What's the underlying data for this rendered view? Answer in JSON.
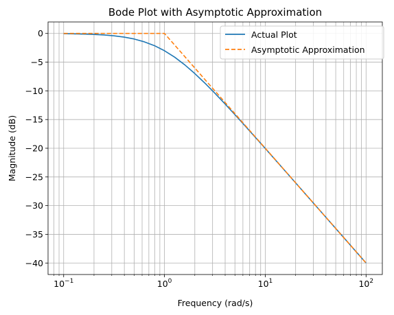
{
  "chart_data": {
    "type": "line",
    "title": "Bode Plot with Asymptotic Approximation",
    "xlabel": "Frequency (rad/s)",
    "ylabel": "Magnitude (dB)",
    "xscale": "log",
    "xlim": [
      0.07,
      145
    ],
    "ylim": [
      -42,
      2
    ],
    "x_ticks": [
      {
        "value": 0.1,
        "base": "10",
        "exp": "−1"
      },
      {
        "value": 1,
        "base": "10",
        "exp": "0"
      },
      {
        "value": 10,
        "base": "10",
        "exp": "1"
      },
      {
        "value": 100,
        "base": "10",
        "exp": "2"
      }
    ],
    "y_ticks": [
      {
        "value": 0,
        "label": "0"
      },
      {
        "value": -5,
        "label": "−5"
      },
      {
        "value": -10,
        "label": "−10"
      },
      {
        "value": -15,
        "label": "−15"
      },
      {
        "value": -20,
        "label": "−20"
      },
      {
        "value": -25,
        "label": "−25"
      },
      {
        "value": -30,
        "label": "−30"
      },
      {
        "value": -35,
        "label": "−35"
      },
      {
        "value": -40,
        "label": "−40"
      }
    ],
    "grid": true,
    "grid_minor_x": true,
    "legend_position": "top-right",
    "series": [
      {
        "name": "Actual Plot",
        "color": "#1f77b4",
        "style": "solid",
        "x": [
          0.1,
          0.126,
          0.158,
          0.2,
          0.251,
          0.316,
          0.398,
          0.501,
          0.631,
          0.794,
          1.0,
          1.259,
          1.585,
          1.995,
          2.512,
          3.162,
          3.981,
          5.012,
          6.31,
          7.943,
          10.0,
          12.59,
          15.85,
          19.95,
          25.12,
          31.62,
          39.81,
          50.12,
          63.1,
          79.43,
          100.0
        ],
        "y": [
          -0.04,
          -0.07,
          -0.11,
          -0.17,
          -0.26,
          -0.41,
          -0.64,
          -0.97,
          -1.46,
          -2.12,
          -3.01,
          -4.12,
          -5.45,
          -6.97,
          -8.64,
          -10.41,
          -12.27,
          -14.17,
          -16.11,
          -18.07,
          -20.04,
          -22.03,
          -24.02,
          -26.01,
          -28.01,
          -30.0,
          -32.0,
          -34.0,
          -36.0,
          -38.0,
          -40.0
        ]
      },
      {
        "name": "Asymptotic Approximation",
        "color": "#ff7f0e",
        "style": "dashed",
        "x": [
          0.1,
          1.0,
          10.0,
          100.0
        ],
        "y": [
          0,
          0,
          -20,
          -40
        ]
      }
    ]
  }
}
